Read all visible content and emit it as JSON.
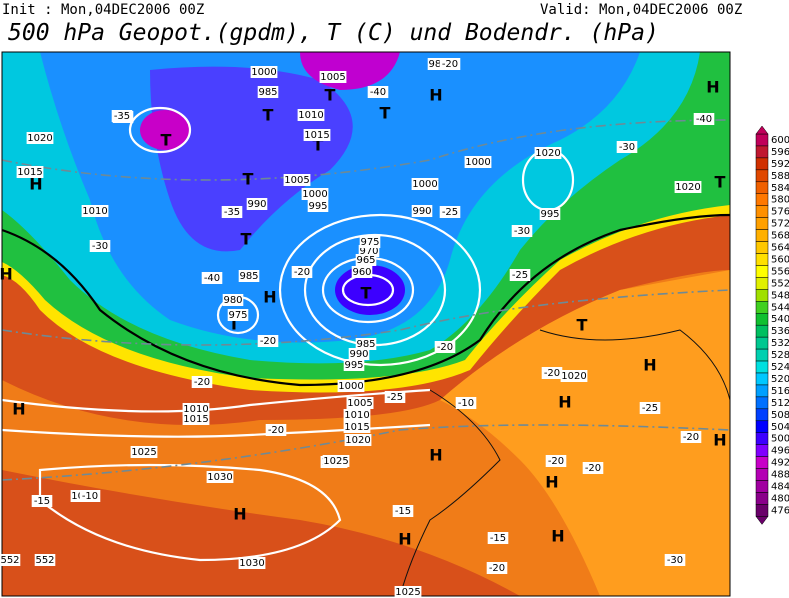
{
  "header": {
    "init": "Init : Mon,04DEC2006 00Z",
    "valid": "Valid: Mon,04DEC2006 00Z",
    "title": "500 hPa Geopot.(gpdm), T (C) und Bodendr. (hPa)"
  },
  "colorbar": {
    "labels": [
      600,
      596,
      592,
      588,
      584,
      580,
      576,
      572,
      568,
      564,
      560,
      556,
      552,
      548,
      544,
      540,
      536,
      532,
      528,
      524,
      520,
      516,
      512,
      508,
      504,
      500,
      496,
      492,
      488,
      484,
      480,
      476
    ],
    "colors": [
      "#c0005a",
      "#c01830",
      "#d03000",
      "#e04800",
      "#f06000",
      "#ff7800",
      "#ff9000",
      "#ffa000",
      "#ffb000",
      "#ffc800",
      "#ffe000",
      "#ffff00",
      "#e0f000",
      "#a0e000",
      "#40d020",
      "#10c030",
      "#00c060",
      "#00c890",
      "#00d0b0",
      "#00e0e0",
      "#00c8ff",
      "#00a0ff",
      "#0070ff",
      "#0040ff",
      "#0000ff",
      "#3c00ff",
      "#8000ff",
      "#c800c8",
      "#b400b4",
      "#a000a0",
      "#8a008a",
      "#6a006a"
    ]
  },
  "map_labels": [
    "H",
    "T",
    "T",
    "H",
    "T",
    "T",
    "T",
    "T",
    "H",
    "T",
    "H",
    "T",
    "H",
    "T",
    "H",
    "H",
    "H",
    "T",
    "H",
    "H",
    "H",
    "H",
    "H",
    "H",
    "T",
    "1000",
    "1005",
    "985",
    "1010",
    "1015",
    "1005",
    "1000",
    "995",
    "990",
    "985",
    "980",
    "975",
    "970",
    "965",
    "960",
    "975",
    "985",
    "990",
    "995",
    "1000",
    "1005",
    "1010",
    "1015",
    "1020",
    "1025",
    "1030",
    "1030",
    "1030",
    "1025",
    "1020",
    "1015",
    "1010",
    "1000",
    "995",
    "1020",
    "1020",
    "1025",
    "1025",
    "1020",
    "1015",
    "1010",
    "1005",
    "1000",
    "990",
    "985",
    "-35",
    "-40",
    "-35",
    "-40",
    "-30",
    "-25",
    "-30",
    "-35",
    "-40",
    "-30",
    "-25",
    "-20",
    "-20",
    "-20",
    "-15",
    "-15",
    "-10",
    "-10",
    "-20",
    "-20",
    "-20",
    "-25",
    "-20",
    "-15",
    "-20",
    "-20",
    "-20",
    "-20",
    "-25",
    "-30",
    "552",
    "552"
  ]
}
